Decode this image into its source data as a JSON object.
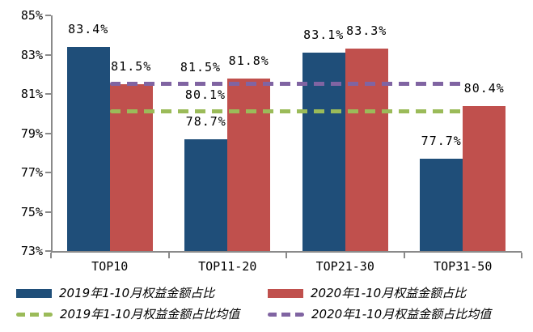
{
  "chart_data": {
    "type": "bar",
    "title": "",
    "categories": [
      "TOP10",
      "TOP11-20",
      "TOP21-30",
      "TOP31-50"
    ],
    "series": [
      {
        "name": "2019年1-10月权益金额占比",
        "color": "#1F4E79",
        "values": [
          83.4,
          78.7,
          83.1,
          77.7
        ],
        "data_labels": [
          "83.4%",
          "78.7%",
          "83.1%",
          "77.7%"
        ]
      },
      {
        "name": "2020年1-10月权益金额占比",
        "color": "#C0504D",
        "values": [
          81.5,
          81.8,
          83.3,
          80.4
        ],
        "data_labels": [
          "81.5%",
          "81.8%",
          "83.3%",
          "80.4%"
        ]
      }
    ],
    "mean_lines": [
      {
        "name": "2019年1-10月权益金额占比均值",
        "color": "#9BBB59",
        "value": 80.1,
        "label": "80.1%"
      },
      {
        "name": "2020年1-10月权益金额占比均值",
        "color": "#8064A2",
        "value": 81.5,
        "label": "81.5%"
      }
    ],
    "xlabel": "",
    "ylabel": "",
    "ylim": [
      73,
      85
    ],
    "ytick_values": [
      73,
      75,
      77,
      79,
      81,
      83,
      85
    ],
    "ytick_labels": [
      "73%",
      "75%",
      "77%",
      "79%",
      "81%",
      "83%",
      "85%"
    ],
    "grid": false,
    "legend_position": "bottom",
    "axis_color": "#8a8a8a"
  },
  "legend": {
    "items": [
      {
        "label": "2019年1-10月权益金额占比",
        "swatch": "solid",
        "color": "#1F4E79"
      },
      {
        "label": "2020年1-10月权益金额占比",
        "swatch": "solid",
        "color": "#C0504D"
      },
      {
        "label": "2019年1-10月权益金额占比均值",
        "swatch": "dashed",
        "color": "#9BBB59"
      },
      {
        "label": "2020年1-10月权益金额占比均值",
        "swatch": "dashed",
        "color": "#8064A2"
      }
    ]
  }
}
